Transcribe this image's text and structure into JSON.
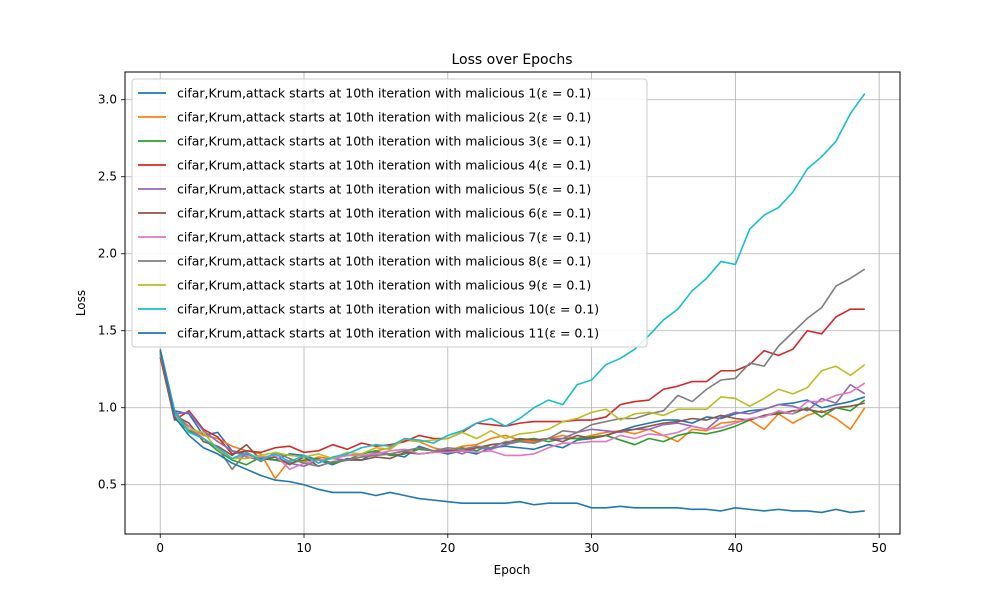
{
  "chart_data": {
    "type": "line",
    "title": "Loss over Epochs",
    "xlabel": "Epoch",
    "ylabel": "Loss",
    "xlim": [
      -2.45,
      51.45
    ],
    "ylim": [
      0.18,
      3.18
    ],
    "xticks": [
      0,
      10,
      20,
      30,
      40,
      50
    ],
    "yticks": [
      0.5,
      1.0,
      1.5,
      2.0,
      2.5,
      3.0
    ],
    "grid": true,
    "legend_location": "upper-left",
    "series": [
      {
        "name": "cifar,Krum,attack starts at 10th iteration with malicious 1(ε = 0.1)",
        "color": "#1f77b4",
        "values": [
          1.38,
          0.98,
          0.96,
          0.82,
          0.84,
          0.72,
          0.7,
          0.67,
          0.66,
          0.7,
          0.69,
          0.66,
          0.63,
          0.67,
          0.66,
          0.71,
          0.7,
          0.68,
          0.75,
          0.72,
          0.7,
          0.72,
          0.7,
          0.74,
          0.75,
          0.74,
          0.73,
          0.76,
          0.74,
          0.79,
          0.8,
          0.82,
          0.85,
          0.88,
          0.9,
          0.92,
          0.92,
          0.9,
          0.94,
          0.93,
          0.96,
          0.98,
          0.99,
          1.02,
          1.03,
          1.05,
          1.0,
          1.02,
          1.04,
          1.07
        ]
      },
      {
        "name": "cifar,Krum,attack starts at 10th iteration with malicious 2(ε = 0.1)",
        "color": "#ff7f0e",
        "values": [
          1.36,
          0.95,
          0.88,
          0.82,
          0.8,
          0.75,
          0.72,
          0.7,
          0.54,
          0.66,
          0.65,
          0.68,
          0.67,
          0.69,
          0.7,
          0.72,
          0.74,
          0.79,
          0.78,
          0.74,
          0.72,
          0.75,
          0.76,
          0.8,
          0.82,
          0.79,
          0.78,
          0.8,
          0.82,
          0.8,
          0.82,
          0.84,
          0.85,
          0.83,
          0.86,
          0.82,
          0.78,
          0.86,
          0.85,
          0.9,
          0.91,
          0.92,
          0.86,
          0.96,
          0.9,
          0.95,
          0.98,
          0.93,
          0.86,
          1.0
        ]
      },
      {
        "name": "cifar,Krum,attack starts at 10th iteration with malicious 3(ε = 0.1)",
        "color": "#2ca02c",
        "values": [
          1.35,
          0.93,
          0.85,
          0.8,
          0.72,
          0.66,
          0.63,
          0.68,
          0.66,
          0.64,
          0.66,
          0.67,
          0.64,
          0.66,
          0.7,
          0.72,
          0.69,
          0.7,
          0.73,
          0.72,
          0.71,
          0.74,
          0.72,
          0.76,
          0.77,
          0.79,
          0.8,
          0.78,
          0.8,
          0.8,
          0.81,
          0.82,
          0.79,
          0.76,
          0.8,
          0.78,
          0.82,
          0.84,
          0.83,
          0.85,
          0.88,
          0.92,
          0.95,
          0.97,
          0.96,
          1.0,
          0.94,
          1.0,
          0.98,
          1.05
        ]
      },
      {
        "name": "cifar,Krum,attack starts at 10th iteration with malicious 4(ε = 0.1)",
        "color": "#d62728",
        "values": [
          1.33,
          0.92,
          0.98,
          0.86,
          0.81,
          0.7,
          0.72,
          0.71,
          0.74,
          0.75,
          0.71,
          0.72,
          0.76,
          0.73,
          0.77,
          0.75,
          0.76,
          0.78,
          0.82,
          0.8,
          0.8,
          0.84,
          0.9,
          0.89,
          0.88,
          0.9,
          0.91,
          0.91,
          0.91,
          0.92,
          0.92,
          0.94,
          1.02,
          1.04,
          1.05,
          1.12,
          1.14,
          1.17,
          1.17,
          1.24,
          1.24,
          1.28,
          1.37,
          1.34,
          1.38,
          1.5,
          1.48,
          1.59,
          1.64,
          1.64
        ]
      },
      {
        "name": "cifar,Krum,attack starts at 10th iteration with malicious 5(ε = 0.1)",
        "color": "#9467bd",
        "values": [
          1.37,
          0.96,
          0.97,
          0.85,
          0.78,
          0.72,
          0.68,
          0.66,
          0.68,
          0.64,
          0.62,
          0.66,
          0.67,
          0.66,
          0.68,
          0.71,
          0.7,
          0.72,
          0.7,
          0.71,
          0.73,
          0.7,
          0.74,
          0.73,
          0.76,
          0.78,
          0.77,
          0.8,
          0.8,
          0.84,
          0.86,
          0.85,
          0.84,
          0.86,
          0.86,
          0.89,
          0.9,
          0.88,
          0.86,
          0.94,
          0.97,
          0.96,
          0.99,
          1.02,
          1.01,
          0.98,
          1.06,
          1.03,
          1.15,
          1.09
        ]
      },
      {
        "name": "cifar,Krum,attack starts at 10th iteration with malicious 6(ε = 0.1)",
        "color": "#8c564b",
        "values": [
          1.36,
          0.95,
          0.9,
          0.78,
          0.75,
          0.69,
          0.76,
          0.66,
          0.68,
          0.63,
          0.68,
          0.62,
          0.65,
          0.66,
          0.66,
          0.68,
          0.67,
          0.71,
          0.7,
          0.71,
          0.72,
          0.72,
          0.74,
          0.76,
          0.77,
          0.8,
          0.79,
          0.8,
          0.78,
          0.82,
          0.8,
          0.82,
          0.85,
          0.86,
          0.88,
          0.9,
          0.91,
          0.93,
          0.92,
          0.95,
          0.93,
          0.92,
          0.95,
          0.96,
          0.98,
          0.99,
          0.97,
          1.0,
          1.01,
          1.03
        ]
      },
      {
        "name": "cifar,Krum,attack starts at 10th iteration with malicious 7(ε = 0.1)",
        "color": "#e377c2",
        "values": [
          1.37,
          0.95,
          0.88,
          0.8,
          0.74,
          0.67,
          0.69,
          0.68,
          0.69,
          0.6,
          0.64,
          0.66,
          0.67,
          0.69,
          0.69,
          0.7,
          0.72,
          0.73,
          0.7,
          0.71,
          0.71,
          0.72,
          0.71,
          0.72,
          0.69,
          0.69,
          0.7,
          0.74,
          0.77,
          0.77,
          0.78,
          0.78,
          0.82,
          0.8,
          0.83,
          0.82,
          0.84,
          0.88,
          0.86,
          0.87,
          0.9,
          0.93,
          0.94,
          0.98,
          0.96,
          1.04,
          1.04,
          1.08,
          1.1,
          1.16
        ]
      },
      {
        "name": "cifar,Krum,attack starts at 10th iteration with malicious 8(ε = 0.1)",
        "color": "#7f7f7f",
        "values": [
          1.35,
          0.98,
          0.86,
          0.8,
          0.74,
          0.6,
          0.71,
          0.65,
          0.71,
          0.67,
          0.64,
          0.62,
          0.65,
          0.66,
          0.68,
          0.69,
          0.7,
          0.72,
          0.74,
          0.72,
          0.74,
          0.73,
          0.75,
          0.74,
          0.78,
          0.78,
          0.77,
          0.8,
          0.85,
          0.84,
          0.89,
          0.91,
          0.93,
          0.93,
          0.96,
          0.98,
          1.08,
          1.04,
          1.12,
          1.18,
          1.19,
          1.29,
          1.27,
          1.4,
          1.49,
          1.58,
          1.65,
          1.79,
          1.84,
          1.9
        ]
      },
      {
        "name": "cifar,Krum,attack starts at 10th iteration with malicious 9(ε = 0.1)",
        "color": "#bcbd22",
        "values": [
          1.36,
          0.94,
          0.86,
          0.84,
          0.73,
          0.67,
          0.67,
          0.69,
          0.71,
          0.69,
          0.68,
          0.7,
          0.67,
          0.71,
          0.7,
          0.74,
          0.73,
          0.8,
          0.78,
          0.79,
          0.8,
          0.84,
          0.8,
          0.85,
          0.8,
          0.83,
          0.84,
          0.86,
          0.91,
          0.93,
          0.97,
          0.99,
          0.92,
          0.96,
          0.97,
          0.95,
          0.99,
          0.99,
          0.99,
          1.07,
          1.06,
          1.01,
          1.06,
          1.12,
          1.09,
          1.13,
          1.24,
          1.27,
          1.21,
          1.28
        ]
      },
      {
        "name": "cifar,Krum,attack starts at 10th iteration with malicious 10(ε = 0.1)",
        "color": "#17becf",
        "values": [
          1.37,
          0.97,
          0.84,
          0.8,
          0.74,
          0.67,
          0.71,
          0.66,
          0.7,
          0.65,
          0.69,
          0.64,
          0.68,
          0.7,
          0.74,
          0.76,
          0.75,
          0.8,
          0.79,
          0.77,
          0.82,
          0.85,
          0.9,
          0.93,
          0.88,
          0.93,
          1.0,
          1.05,
          1.02,
          1.15,
          1.18,
          1.28,
          1.32,
          1.38,
          1.47,
          1.57,
          1.64,
          1.76,
          1.84,
          1.95,
          1.93,
          2.16,
          2.25,
          2.3,
          2.4,
          2.55,
          2.63,
          2.73,
          2.91,
          3.04
        ]
      },
      {
        "name": "cifar,Krum,attack starts at 10th iteration with malicious 11(ε = 0.1)",
        "color": "#1f77b4",
        "values": [
          1.37,
          0.94,
          0.82,
          0.74,
          0.7,
          0.64,
          0.6,
          0.56,
          0.53,
          0.52,
          0.5,
          0.47,
          0.45,
          0.45,
          0.45,
          0.43,
          0.45,
          0.43,
          0.41,
          0.4,
          0.39,
          0.38,
          0.38,
          0.38,
          0.38,
          0.39,
          0.37,
          0.38,
          0.38,
          0.38,
          0.35,
          0.35,
          0.36,
          0.35,
          0.35,
          0.35,
          0.35,
          0.34,
          0.34,
          0.33,
          0.35,
          0.34,
          0.33,
          0.34,
          0.33,
          0.33,
          0.32,
          0.34,
          0.32,
          0.33
        ]
      }
    ]
  }
}
